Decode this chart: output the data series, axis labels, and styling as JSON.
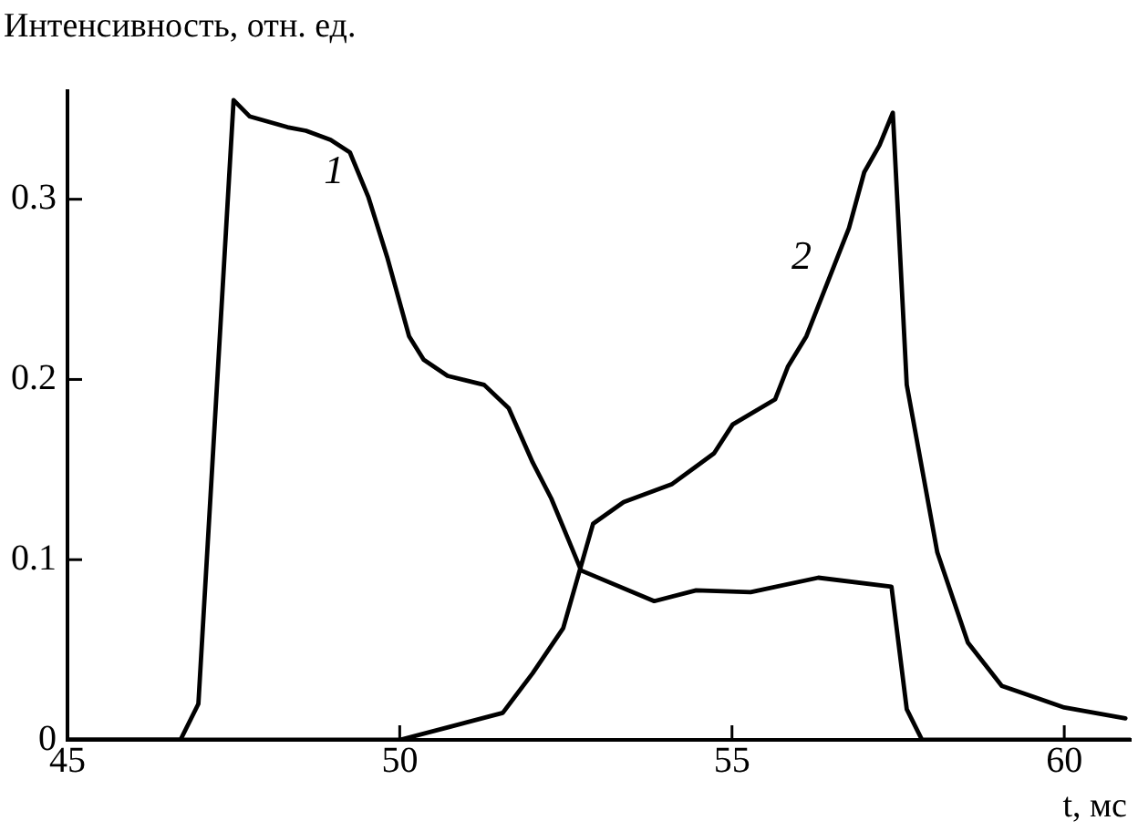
{
  "chart_data": {
    "type": "line",
    "ylabel": "Интенсивность, отн. ед.",
    "xlabel": "t, мс",
    "xlim": [
      45,
      61
    ],
    "xticks": [
      45,
      50,
      55,
      60
    ],
    "ylim": [
      0,
      0.36
    ],
    "yticks": [
      0,
      0.1,
      0.2,
      0.3
    ],
    "grid": false,
    "legend": false,
    "marker": "none",
    "line_style": "solid",
    "series": [
      {
        "name": "1",
        "color": "#000000",
        "x": [
          45,
          46.7,
          46.97,
          47.5,
          47.74,
          48.31,
          48.59,
          48.96,
          49.25,
          49.53,
          49.81,
          50.14,
          50.36,
          50.72,
          51.27,
          51.64,
          52.0,
          52.28,
          52.55,
          52.73,
          53.83,
          54.46,
          55.28,
          56.3,
          57.4,
          57.63,
          57.86,
          61
        ],
        "values": [
          0,
          0,
          0.02,
          0.355,
          0.346,
          0.34,
          0.338,
          0.333,
          0.326,
          0.301,
          0.268,
          0.224,
          0.211,
          0.202,
          0.197,
          0.184,
          0.154,
          0.134,
          0.11,
          0.094,
          0.077,
          0.083,
          0.082,
          0.09,
          0.085,
          0.017,
          0,
          0
        ]
      },
      {
        "name": "2",
        "color": "#000000",
        "x": [
          45,
          50,
          50.73,
          51.55,
          52.0,
          52.46,
          52.91,
          53.37,
          54.1,
          54.73,
          55.01,
          55.65,
          55.84,
          56.12,
          56.76,
          56.99,
          57.22,
          57.42,
          57.63,
          58.09,
          58.55,
          59.06,
          60.0,
          60.92
        ],
        "values": [
          0,
          0,
          0.007,
          0.015,
          0.037,
          0.062,
          0.12,
          0.132,
          0.142,
          0.159,
          0.175,
          0.189,
          0.207,
          0.224,
          0.284,
          0.315,
          0.33,
          0.348,
          0.197,
          0.104,
          0.054,
          0.03,
          0.018,
          0.012
        ]
      }
    ]
  }
}
